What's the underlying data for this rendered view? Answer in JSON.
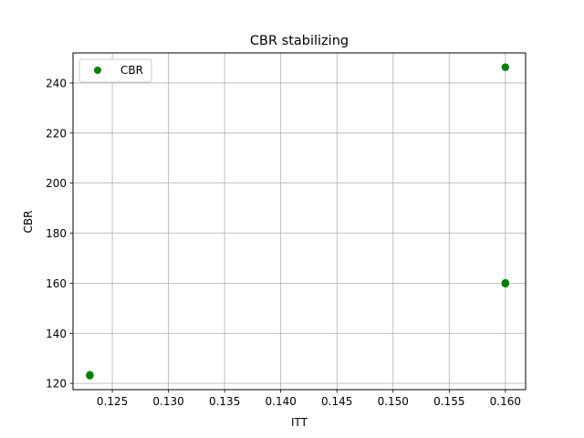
{
  "chart_data": {
    "type": "scatter",
    "title": "CBR stabilizing",
    "xlabel": "ITT",
    "ylabel": "CBR",
    "xlim": [
      0.1215,
      0.1618
    ],
    "ylim": [
      117.5,
      252
    ],
    "xticks": [
      0.125,
      0.13,
      0.135,
      0.14,
      0.145,
      0.15,
      0.155,
      0.16
    ],
    "xtick_labels": [
      "0.125",
      "0.130",
      "0.135",
      "0.140",
      "0.145",
      "0.150",
      "0.155",
      "0.160"
    ],
    "yticks": [
      120,
      140,
      160,
      180,
      200,
      220,
      240
    ],
    "ytick_labels": [
      "120",
      "140",
      "160",
      "180",
      "200",
      "220",
      "240"
    ],
    "grid": true,
    "legend_position": "top-left",
    "series": [
      {
        "name": "CBR",
        "color": "#008000",
        "marker": "circle",
        "x": [
          0.123,
          0.123,
          0.123,
          0.16,
          0.16,
          0.16,
          0.16
        ],
        "y": [
          123.2,
          123.4,
          123.1,
          160.0,
          159.8,
          160.1,
          246.3
        ]
      }
    ]
  }
}
